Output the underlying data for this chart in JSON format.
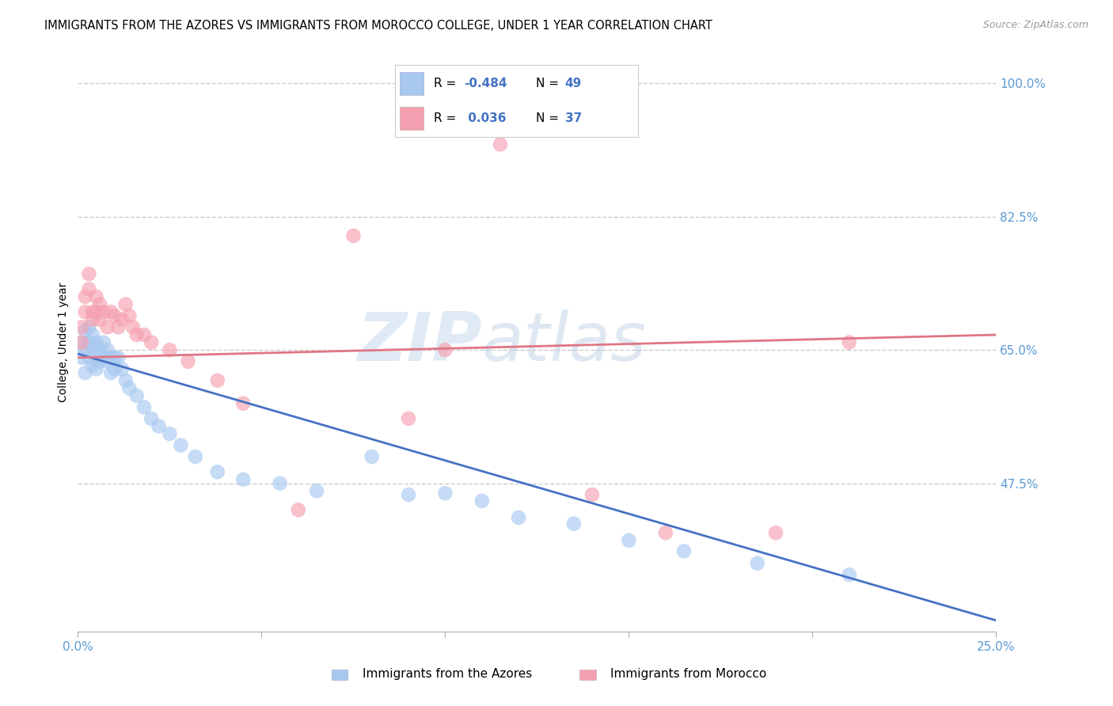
{
  "title": "IMMIGRANTS FROM THE AZORES VS IMMIGRANTS FROM MOROCCO COLLEGE, UNDER 1 YEAR CORRELATION CHART",
  "source": "Source: ZipAtlas.com",
  "ylabel": "College, Under 1 year",
  "xmin": 0.0,
  "xmax": 0.25,
  "ymin": 0.28,
  "ymax": 1.04,
  "ytick_vals": [
    0.475,
    0.65,
    0.825,
    1.0
  ],
  "ytick_labels": [
    "47.5%",
    "65.0%",
    "82.5%",
    "100.0%"
  ],
  "xtick_vals": [
    0.0,
    0.05,
    0.1,
    0.15,
    0.2,
    0.25
  ],
  "xtick_labels": [
    "0.0%",
    "",
    "",
    "",
    "",
    "25.0%"
  ],
  "watermark_zip": "ZIP",
  "watermark_atlas": "atlas",
  "azores_R": "-0.484",
  "azores_N": "49",
  "morocco_R": "0.036",
  "morocco_N": "37",
  "azores_label": "Immigrants from the Azores",
  "morocco_label": "Immigrants from Morocco",
  "azores_scatter_color": "#a8c8f0",
  "morocco_scatter_color": "#f5a0b0",
  "azores_line_color": "#4472c4",
  "morocco_line_color": "#e07585",
  "grid_color": "#cccccc",
  "background_color": "#ffffff",
  "axis_tick_color": "#5b9bd5",
  "azores_x": [
    0.001,
    0.001,
    0.002,
    0.002,
    0.002,
    0.003,
    0.003,
    0.003,
    0.004,
    0.004,
    0.004,
    0.005,
    0.005,
    0.005,
    0.006,
    0.006,
    0.007,
    0.007,
    0.008,
    0.008,
    0.009,
    0.009,
    0.01,
    0.01,
    0.011,
    0.012,
    0.013,
    0.014,
    0.016,
    0.018,
    0.02,
    0.022,
    0.025,
    0.028,
    0.032,
    0.038,
    0.045,
    0.055,
    0.065,
    0.08,
    0.09,
    0.1,
    0.11,
    0.12,
    0.135,
    0.15,
    0.165,
    0.185,
    0.21
  ],
  "azores_y": [
    0.66,
    0.64,
    0.675,
    0.65,
    0.62,
    0.68,
    0.66,
    0.64,
    0.67,
    0.655,
    0.63,
    0.66,
    0.645,
    0.625,
    0.65,
    0.635,
    0.66,
    0.64,
    0.65,
    0.635,
    0.64,
    0.62,
    0.64,
    0.625,
    0.64,
    0.625,
    0.61,
    0.6,
    0.59,
    0.575,
    0.56,
    0.55,
    0.54,
    0.525,
    0.51,
    0.49,
    0.48,
    0.475,
    0.465,
    0.51,
    0.46,
    0.462,
    0.452,
    0.43,
    0.422,
    0.4,
    0.386,
    0.37,
    0.355
  ],
  "morocco_x": [
    0.001,
    0.001,
    0.002,
    0.002,
    0.003,
    0.003,
    0.004,
    0.004,
    0.005,
    0.005,
    0.006,
    0.006,
    0.007,
    0.008,
    0.009,
    0.01,
    0.011,
    0.012,
    0.013,
    0.014,
    0.015,
    0.016,
    0.018,
    0.02,
    0.025,
    0.03,
    0.038,
    0.045,
    0.06,
    0.075,
    0.09,
    0.1,
    0.115,
    0.14,
    0.16,
    0.19,
    0.21
  ],
  "morocco_y": [
    0.66,
    0.68,
    0.7,
    0.72,
    0.75,
    0.73,
    0.7,
    0.69,
    0.72,
    0.7,
    0.71,
    0.69,
    0.7,
    0.68,
    0.7,
    0.695,
    0.68,
    0.69,
    0.71,
    0.695,
    0.68,
    0.67,
    0.67,
    0.66,
    0.65,
    0.635,
    0.61,
    0.58,
    0.44,
    0.8,
    0.56,
    0.65,
    0.92,
    0.46,
    0.41,
    0.41,
    0.66
  ],
  "azores_line_x0": 0.0,
  "azores_line_x1": 0.25,
  "azores_line_y0": 0.645,
  "azores_line_y1": 0.295,
  "morocco_line_x0": 0.0,
  "morocco_line_x1": 0.25,
  "morocco_line_y0": 0.64,
  "morocco_line_y1": 0.67
}
